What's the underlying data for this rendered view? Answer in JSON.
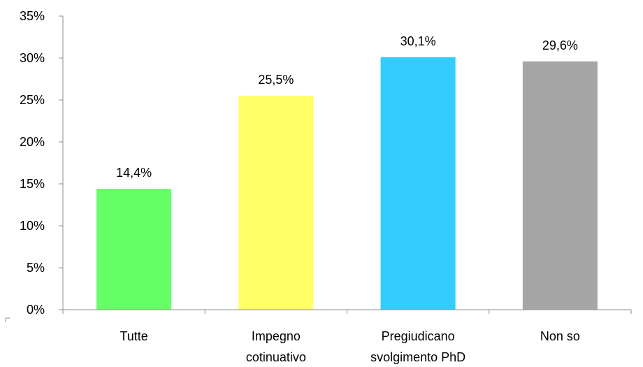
{
  "chart_data": {
    "type": "bar",
    "categories": [
      [
        "Tutte"
      ],
      [
        "Impegno",
        "cotinuativo"
      ],
      [
        "Pregiudicano",
        "svolgimento PhD"
      ],
      [
        "Non so"
      ]
    ],
    "values": [
      14.4,
      25.5,
      30.1,
      29.6
    ],
    "data_labels": [
      "14,4%",
      "25,5%",
      "30,1%",
      "29,6%"
    ],
    "bar_colors": [
      "#66ff66",
      "#ffff66",
      "#33ccff",
      "#a6a6a6"
    ],
    "ylim": [
      0,
      35
    ],
    "yticks": [
      0,
      5,
      10,
      15,
      20,
      25,
      30,
      35
    ],
    "ytick_labels": [
      "0%",
      "5%",
      "10%",
      "15%",
      "20%",
      "25%",
      "30%",
      "35%"
    ],
    "title": "",
    "xlabel": "",
    "ylabel": "",
    "grid": false,
    "legend": "none"
  }
}
